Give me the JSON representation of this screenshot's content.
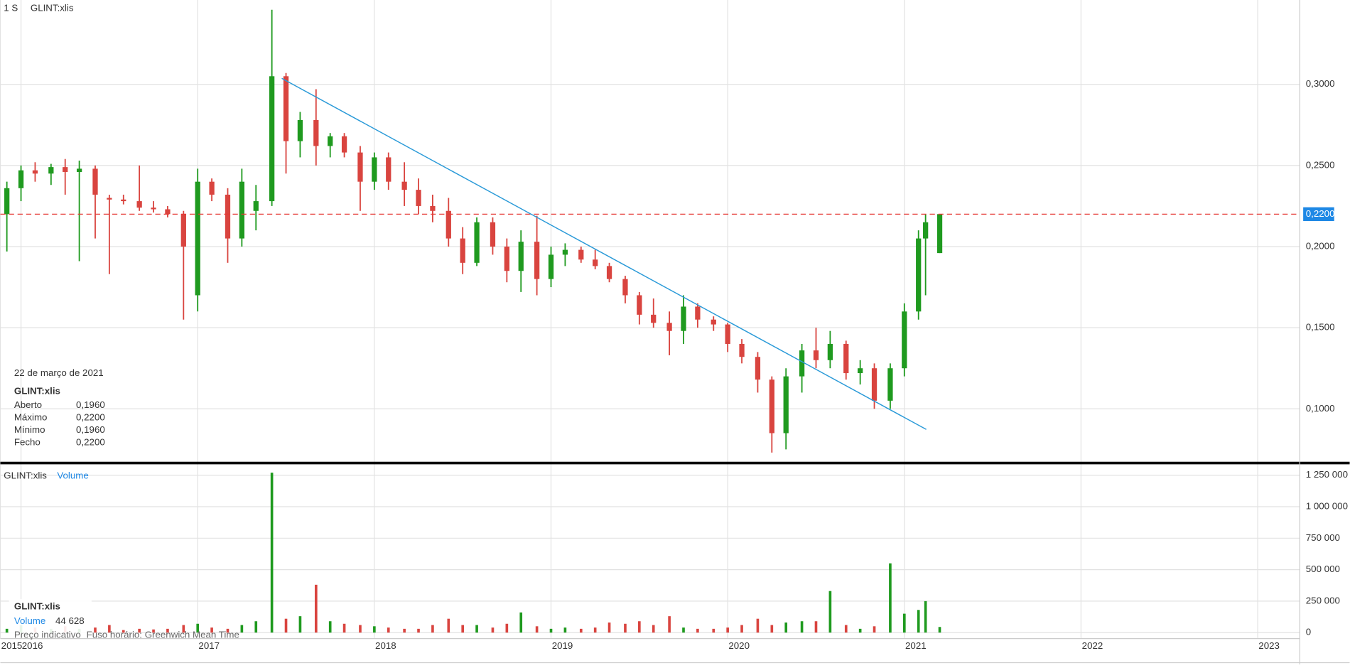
{
  "chart_data": [
    {
      "type": "candlestick",
      "title": "GLINT:xlis",
      "timeframe": "1 S",
      "x": [
        2015.92,
        2016.0,
        2016.08,
        2016.17,
        2016.25,
        2016.33,
        2016.42,
        2016.5,
        2016.58,
        2016.67,
        2016.75,
        2016.83,
        2016.92,
        2017.0,
        2017.08,
        2017.17,
        2017.25,
        2017.33,
        2017.42,
        2017.5,
        2017.58,
        2017.67,
        2017.75,
        2017.83,
        2017.92,
        2018.0,
        2018.08,
        2018.17,
        2018.25,
        2018.33,
        2018.42,
        2018.5,
        2018.58,
        2018.67,
        2018.75,
        2018.83,
        2018.92,
        2019.0,
        2019.08,
        2019.17,
        2019.25,
        2019.33,
        2019.42,
        2019.5,
        2019.58,
        2019.67,
        2019.75,
        2019.83,
        2019.92,
        2020.0,
        2020.08,
        2020.17,
        2020.25,
        2020.33,
        2020.42,
        2020.5,
        2020.58,
        2020.67,
        2020.75,
        2020.83,
        2020.92,
        2021.0,
        2021.08,
        2021.12,
        2021.2
      ],
      "open": [
        0.22,
        0.236,
        0.247,
        0.245,
        0.249,
        0.246,
        0.248,
        0.23,
        0.229,
        0.228,
        0.224,
        0.223,
        0.22,
        0.17,
        0.24,
        0.232,
        0.205,
        0.222,
        0.228,
        0.305,
        0.265,
        0.278,
        0.262,
        0.268,
        0.258,
        0.24,
        0.255,
        0.24,
        0.235,
        0.225,
        0.222,
        0.205,
        0.19,
        0.215,
        0.2,
        0.185,
        0.203,
        0.18,
        0.195,
        0.198,
        0.192,
        0.188,
        0.18,
        0.17,
        0.158,
        0.153,
        0.148,
        0.163,
        0.155,
        0.152,
        0.14,
        0.132,
        0.118,
        0.085,
        0.12,
        0.136,
        0.13,
        0.14,
        0.122,
        0.125,
        0.105,
        0.125,
        0.16,
        0.205,
        0.196
      ],
      "high": [
        0.24,
        0.25,
        0.252,
        0.251,
        0.254,
        0.253,
        0.25,
        0.232,
        0.232,
        0.25,
        0.228,
        0.225,
        0.222,
        0.248,
        0.242,
        0.236,
        0.248,
        0.238,
        0.346,
        0.307,
        0.283,
        0.297,
        0.27,
        0.27,
        0.262,
        0.258,
        0.258,
        0.252,
        0.242,
        0.232,
        0.23,
        0.212,
        0.218,
        0.218,
        0.205,
        0.21,
        0.219,
        0.2,
        0.202,
        0.2,
        0.198,
        0.19,
        0.182,
        0.172,
        0.168,
        0.16,
        0.17,
        0.165,
        0.157,
        0.153,
        0.143,
        0.135,
        0.12,
        0.125,
        0.14,
        0.15,
        0.148,
        0.142,
        0.13,
        0.128,
        0.128,
        0.165,
        0.21,
        0.22,
        0.22
      ],
      "low": [
        0.197,
        0.228,
        0.24,
        0.238,
        0.232,
        0.191,
        0.205,
        0.183,
        0.226,
        0.222,
        0.221,
        0.218,
        0.155,
        0.16,
        0.228,
        0.19,
        0.2,
        0.21,
        0.225,
        0.245,
        0.255,
        0.25,
        0.255,
        0.255,
        0.222,
        0.235,
        0.235,
        0.225,
        0.22,
        0.215,
        0.2,
        0.183,
        0.188,
        0.195,
        0.178,
        0.172,
        0.17,
        0.175,
        0.188,
        0.19,
        0.186,
        0.178,
        0.165,
        0.152,
        0.15,
        0.133,
        0.14,
        0.15,
        0.148,
        0.135,
        0.128,
        0.11,
        0.073,
        0.075,
        0.11,
        0.125,
        0.125,
        0.118,
        0.115,
        0.1,
        0.1,
        0.12,
        0.155,
        0.17,
        0.196
      ],
      "close": [
        0.236,
        0.247,
        0.245,
        0.249,
        0.246,
        0.248,
        0.232,
        0.229,
        0.228,
        0.224,
        0.223,
        0.22,
        0.2,
        0.24,
        0.232,
        0.205,
        0.24,
        0.228,
        0.305,
        0.265,
        0.278,
        0.262,
        0.268,
        0.258,
        0.24,
        0.255,
        0.24,
        0.235,
        0.225,
        0.222,
        0.205,
        0.19,
        0.215,
        0.2,
        0.185,
        0.203,
        0.18,
        0.195,
        0.198,
        0.192,
        0.188,
        0.18,
        0.17,
        0.158,
        0.153,
        0.148,
        0.163,
        0.155,
        0.152,
        0.14,
        0.132,
        0.118,
        0.085,
        0.12,
        0.136,
        0.13,
        0.14,
        0.122,
        0.125,
        0.105,
        0.125,
        0.16,
        0.205,
        0.215,
        0.22
      ],
      "up_color": "#1f9a1f",
      "down_color": "#d9443f",
      "xlim": [
        2015.883,
        2023.238
      ],
      "xticks": [
        {
          "value": 2015.883,
          "label": "2015"
        },
        2016,
        2017,
        2018,
        2019,
        2020,
        2021,
        2022,
        2023
      ],
      "ylim": [
        0.0671,
        0.352
      ],
      "yticks": [
        {
          "value": 0.1,
          "label": "0,1000"
        },
        {
          "value": 0.15,
          "label": "0,1500"
        },
        {
          "value": 0.2,
          "label": "0,2000"
        },
        {
          "value": 0.25,
          "label": "0,2500"
        },
        {
          "value": 0.3,
          "label": "0,3000"
        }
      ],
      "grid": true,
      "reference_line": {
        "value": 0.22,
        "label": "0,2200",
        "color": "#e53935",
        "label_color": "#1e88e5"
      },
      "trend_line": {
        "x": [
          2017.476,
          2021.124
        ],
        "y": [
          0.3037,
          0.0873
        ],
        "color": "#2a9ad8"
      }
    },
    {
      "type": "bar",
      "title": "GLINT:xlis",
      "series_name": "Volume",
      "x": [
        2015.92,
        2016.0,
        2016.08,
        2016.17,
        2016.25,
        2016.33,
        2016.42,
        2016.5,
        2016.58,
        2016.67,
        2016.75,
        2016.83,
        2016.92,
        2017.0,
        2017.08,
        2017.17,
        2017.25,
        2017.33,
        2017.42,
        2017.5,
        2017.58,
        2017.67,
        2017.75,
        2017.83,
        2017.92,
        2018.0,
        2018.08,
        2018.17,
        2018.25,
        2018.33,
        2018.42,
        2018.5,
        2018.58,
        2018.67,
        2018.75,
        2018.83,
        2018.92,
        2019.0,
        2019.08,
        2019.17,
        2019.25,
        2019.33,
        2019.42,
        2019.5,
        2019.58,
        2019.67,
        2019.75,
        2019.83,
        2019.92,
        2020.0,
        2020.08,
        2020.17,
        2020.25,
        2020.33,
        2020.42,
        2020.5,
        2020.58,
        2020.67,
        2020.75,
        2020.83,
        2020.92,
        2021.0,
        2021.08,
        2021.12,
        2021.2
      ],
      "values": [
        30000,
        60000,
        40000,
        30000,
        50000,
        30000,
        40000,
        60000,
        20000,
        30000,
        25000,
        30000,
        60000,
        70000,
        40000,
        30000,
        60000,
        90000,
        1270000,
        110000,
        130000,
        380000,
        90000,
        70000,
        60000,
        50000,
        40000,
        30000,
        30000,
        60000,
        110000,
        60000,
        60000,
        40000,
        70000,
        160000,
        50000,
        30000,
        40000,
        30000,
        40000,
        80000,
        70000,
        90000,
        60000,
        130000,
        40000,
        30000,
        30000,
        40000,
        60000,
        110000,
        60000,
        80000,
        90000,
        90000,
        330000,
        60000,
        30000,
        50000,
        550000,
        150000,
        180000,
        250000,
        44628
      ],
      "title_color": "#1e88e5",
      "ylim": [
        -48000,
        1333000
      ],
      "yticks": [
        0,
        {
          "value": 250000,
          "label": "250 000"
        },
        {
          "value": 500000,
          "label": "500 000"
        },
        {
          "value": 750000,
          "label": "750 000"
        },
        {
          "value": 1000000,
          "label": "1 000 000"
        },
        {
          "value": 1250000,
          "label": "1 250 000"
        }
      ],
      "grid": true
    }
  ],
  "info_box": {
    "date": "22 de março de 2021",
    "symbol": "GLINT:xlis",
    "rows": [
      [
        "Aberto",
        "0,1960"
      ],
      [
        "Máximo",
        "0,2200"
      ],
      [
        "Mínimo",
        "0,1960"
      ],
      [
        "Fecho",
        "0,2200"
      ]
    ]
  },
  "volume_box": {
    "symbol": "GLINT:xlis",
    "label": "Volume",
    "value": "44 628"
  },
  "footer": [
    "Preço indicativo",
    "Fuso horário: Greenwich Mean Time"
  ]
}
